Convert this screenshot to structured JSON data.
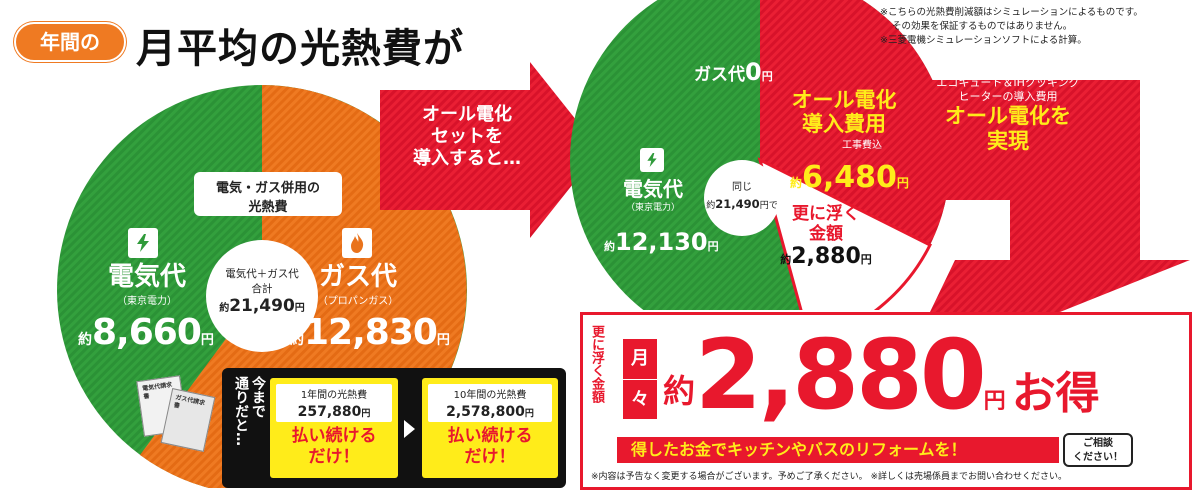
{
  "header": {
    "badge": "年間の",
    "title": "月平均の光熱費が"
  },
  "notes": {
    "line1": "※こちらの光熱費削減額はシミュレーションによるものです。",
    "line2": "その効果を保証するものではありません。",
    "line3": "※三菱電機シミュレーションソフトによる計算。"
  },
  "left_pie": {
    "label_l1": "電気・ガス併用の",
    "label_l2": "光熱費",
    "elec_title": "電気代",
    "elec_sub": "（東京電力）",
    "elec_prefix": "約",
    "elec_value": "8,660",
    "elec_unit": "円",
    "gas_title": "ガス代",
    "gas_sub": "（プロパンガス）",
    "gas_prefix": "約",
    "gas_value": "12,830",
    "gas_unit": "円",
    "total_l1": "電気代＋ガス代",
    "total_l2": "合計",
    "total_prefix": "約",
    "total_value": "21,490",
    "total_unit": "円",
    "doc1": "電気代請求書",
    "doc2": "ガス代請求書"
  },
  "arrow": {
    "l1": "オール電化",
    "l2": "セットを",
    "l3": "導入すると…"
  },
  "right_pie": {
    "gas_label": "ガス代",
    "gas_value": "0",
    "gas_unit": "円",
    "cost_title_l1": "オール電化",
    "cost_title_l2": "導入費用",
    "cost_note": "工事費込",
    "cost_prefix": "約",
    "cost_value": "6,480",
    "cost_unit": "円",
    "elec_title": "電気代",
    "elec_sub": "（東京電力）",
    "elec_prefix": "約",
    "elec_value": "12,130",
    "elec_unit": "円",
    "same_l1": "同じ",
    "same_prefix": "約",
    "same_value": "21,490",
    "same_unit": "円で",
    "float_l1": "更に浮く",
    "float_l2": "金額",
    "float_prefix": "約",
    "float_value": "2,880",
    "float_unit": "円"
  },
  "right_text": {
    "small_l1": "エコキュート＆IHクッキング",
    "small_l2": "ヒーターの導入費用",
    "big_l1": "オール電化を",
    "big_l2": "実現"
  },
  "bottom_left": {
    "side_l1": "今まで",
    "side_l2": "通りだと…",
    "box1_l1": "1年間の光熱費",
    "box1_value": "257,880",
    "box1_unit": "円",
    "box1_pay_l1": "払い続ける",
    "box1_pay_l2": "だけ！",
    "box2_l1": "10年間の光熱費",
    "box2_value": "2,578,800",
    "box2_unit": "円",
    "box2_pay_l1": "払い続ける",
    "box2_pay_l2": "だけ！"
  },
  "result": {
    "vertical_label": "更に浮く金額",
    "month1": "月",
    "month2": "々",
    "prefix": "約",
    "value": "2,880",
    "unit": "円",
    "suffix": "お得",
    "banner": "得したお金でキッチンやバスのリフォームを！",
    "consult_l1": "ご相談",
    "consult_l2": "ください！",
    "footer": "※内容は予告なく変更する場合がございます。予めご了承ください。 ※詳しくは売場係員までお問い合わせください。"
  },
  "colors": {
    "green": "#2f9a3a",
    "orange": "#e9731c",
    "red": "#e8182d",
    "yellow": "#ffec1a"
  }
}
